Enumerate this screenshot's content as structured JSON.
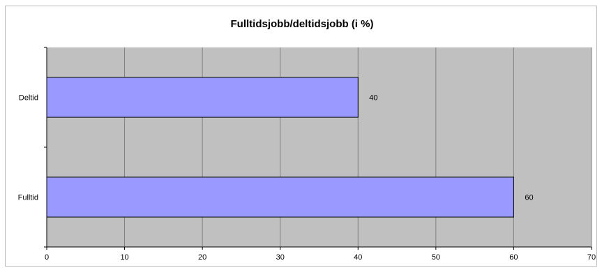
{
  "chart_data": {
    "type": "bar",
    "orientation": "horizontal",
    "title": "Fulltidsjobb/deltidsjobb (i %)",
    "categories": [
      "Deltid",
      "Fulltid"
    ],
    "values": [
      40,
      60
    ],
    "xlabel": "",
    "ylabel": "",
    "xlim": [
      0,
      70
    ],
    "x_ticks": [
      "0",
      "10",
      "20",
      "30",
      "40",
      "50",
      "60",
      "70"
    ],
    "data_labels": [
      "40",
      "60"
    ],
    "grid": true,
    "legend": "none",
    "colors": {
      "bar_fill": "#9999ff",
      "bar_stroke": "#000000",
      "plot_background": "#c0c0c0",
      "gridline": "#808080"
    }
  }
}
